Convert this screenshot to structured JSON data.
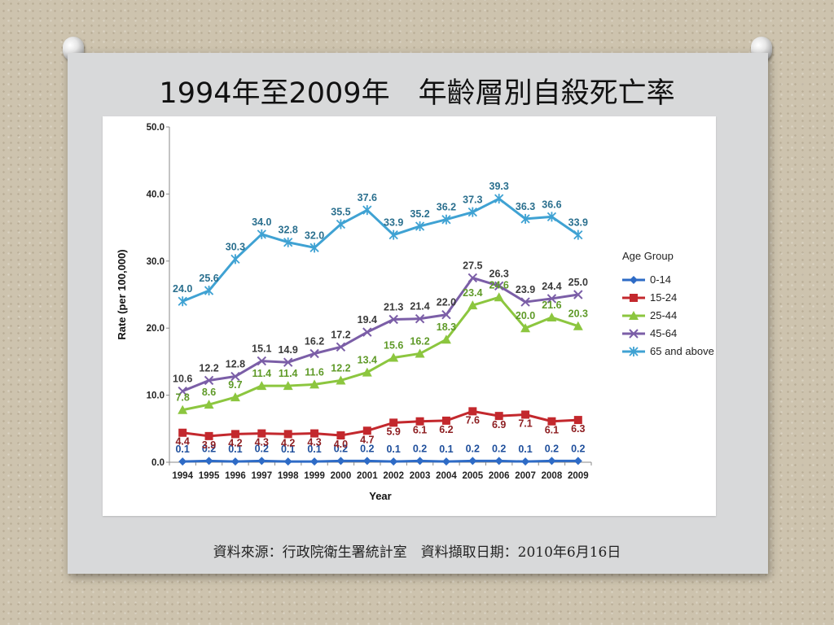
{
  "slide": {
    "title": "1994年至2009年　年齡層別自殺死亡率",
    "source": "資料來源：行政院衛生署統計室　資料擷取日期：2010年6月16日"
  },
  "chart_data": {
    "type": "line",
    "title": "",
    "xlabel": "Year",
    "ylabel": "Rate (per 100,000)",
    "ylim": [
      0,
      50
    ],
    "yticks": [
      "0.0",
      "10.0",
      "20.0",
      "30.0",
      "40.0",
      "50.0"
    ],
    "x": [
      "1994",
      "1995",
      "1996",
      "1997",
      "1998",
      "1999",
      "2000",
      "2001",
      "2002",
      "2003",
      "2004",
      "2005",
      "2006",
      "2007",
      "2008",
      "2009"
    ],
    "legend_title": "Age Group",
    "legend_position": "right",
    "grid": false,
    "series": [
      {
        "name": "0-14",
        "color": "#2e6bc6",
        "marker": "diamond",
        "values": [
          0.1,
          0.2,
          0.1,
          0.2,
          0.1,
          0.1,
          0.2,
          0.2,
          0.1,
          0.2,
          0.1,
          0.2,
          0.2,
          0.1,
          0.2,
          0.2
        ],
        "labels": [
          "0.1",
          "0.2",
          "0.1",
          "0.2",
          "0.1",
          "0.1",
          "0.2",
          "0.2",
          "0.1",
          "0.2",
          "0.1",
          "0.2",
          "0.2",
          "0.1",
          "0.2",
          "0.2"
        ]
      },
      {
        "name": "15-24",
        "color": "#c3282d",
        "marker": "square",
        "values": [
          4.4,
          3.9,
          4.2,
          4.3,
          4.2,
          4.3,
          4.0,
          4.7,
          5.9,
          6.1,
          6.2,
          7.6,
          6.9,
          7.1,
          6.1,
          6.3
        ],
        "labels": [
          "4.4",
          "3.9",
          "4.2",
          "4.3",
          "4.2",
          "4.3",
          "4.0",
          "4.7",
          "5.9",
          "6.1",
          "6.2",
          "7.6",
          "6.9",
          "7.1",
          "6.1",
          "6.3"
        ]
      },
      {
        "name": "25-44",
        "color": "#8cc63f",
        "marker": "triangle",
        "values": [
          7.8,
          8.6,
          9.7,
          11.4,
          11.4,
          11.6,
          12.2,
          13.4,
          15.6,
          16.2,
          18.3,
          23.4,
          24.6,
          20.0,
          21.6,
          20.3
        ],
        "labels": [
          "7.8",
          "8.6",
          "9.7",
          "11.4",
          "11.4",
          "11.6",
          "12.2",
          "13.4",
          "15.6",
          "16.2",
          "18.3",
          "23.4",
          "24.6",
          "20.0",
          "21.6",
          "20.3"
        ]
      },
      {
        "name": "45-64",
        "color": "#7b5ea7",
        "marker": "x",
        "values": [
          10.6,
          12.2,
          12.8,
          15.1,
          14.9,
          16.2,
          17.2,
          19.4,
          21.3,
          21.4,
          22.0,
          27.5,
          26.3,
          23.9,
          24.4,
          25.0
        ],
        "labels": [
          "10.6",
          "12.2",
          "12.8",
          "15.1",
          "14.9",
          "16.2",
          "17.2",
          "19.4",
          "21.3",
          "21.4",
          "22.0",
          "27.5",
          "26.3",
          "23.9",
          "24.4",
          "25.0"
        ]
      },
      {
        "name": "65 and above",
        "color": "#3fa2d3",
        "marker": "star",
        "values": [
          24.0,
          25.6,
          30.3,
          34.0,
          32.8,
          32.0,
          35.5,
          37.6,
          33.9,
          35.2,
          36.2,
          37.3,
          39.3,
          36.3,
          36.6,
          33.9
        ],
        "labels": [
          "24.0",
          "25.6",
          "30.3",
          "34.0",
          "32.8",
          "32.0",
          "35.5",
          "37.6",
          "33.9",
          "35.2",
          "36.2",
          "37.3",
          "39.3",
          "36.3",
          "36.6",
          "33.9"
        ]
      }
    ]
  }
}
